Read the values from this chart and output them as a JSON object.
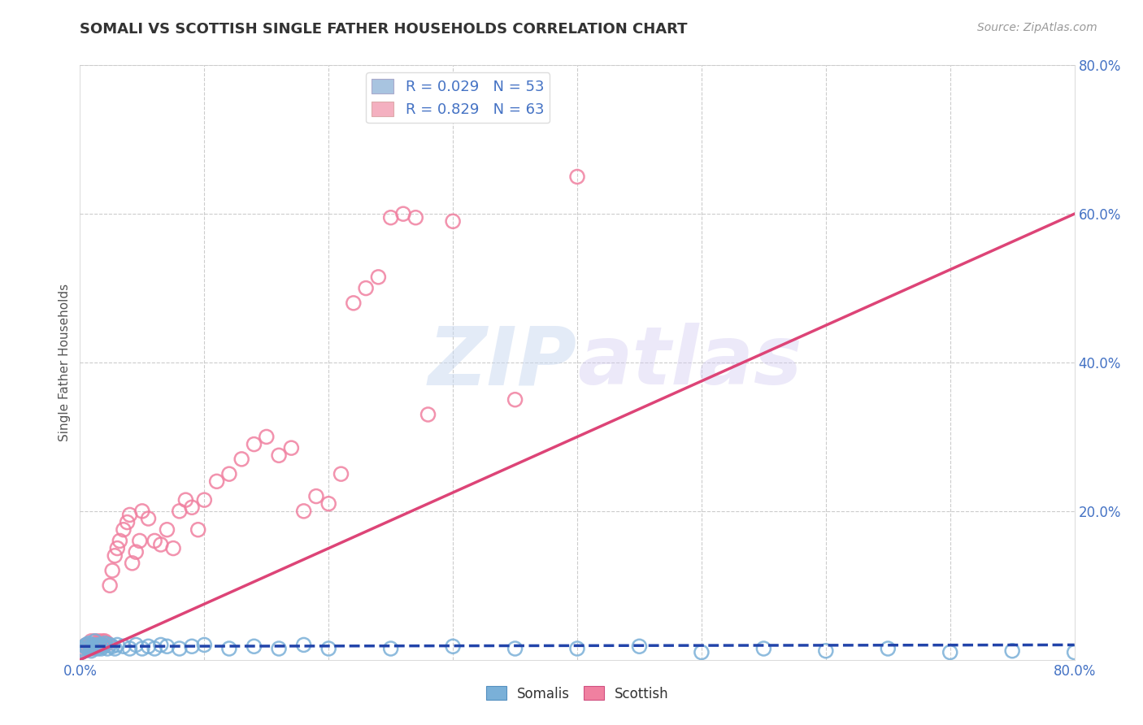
{
  "title": "SOMALI VS SCOTTISH SINGLE FATHER HOUSEHOLDS CORRELATION CHART",
  "source": "Source: ZipAtlas.com",
  "ylabel": "Single Father Households",
  "watermark_zip": "ZIP",
  "watermark_atlas": "atlas",
  "xlim": [
    0.0,
    0.8
  ],
  "ylim": [
    0.0,
    0.8
  ],
  "yticks_right": [
    0.0,
    0.2,
    0.4,
    0.6,
    0.8
  ],
  "somali_color": "#7ab0d8",
  "somali_edge_color": "#5590c0",
  "scottish_color": "#f080a0",
  "scottish_edge_color": "#d05080",
  "somali_line_color": "#2244aa",
  "scottish_line_color": "#dd4477",
  "background_color": "#ffffff",
  "grid_color": "#cccccc",
  "axis_label_color": "#4472c4",
  "title_color": "#333333",
  "legend_box_blue": "#a8c4e0",
  "legend_box_pink": "#f4b0c0",
  "somali_x": [
    0.001,
    0.002,
    0.003,
    0.004,
    0.005,
    0.006,
    0.007,
    0.008,
    0.009,
    0.01,
    0.011,
    0.012,
    0.013,
    0.014,
    0.015,
    0.016,
    0.017,
    0.018,
    0.019,
    0.02,
    0.022,
    0.024,
    0.026,
    0.028,
    0.03,
    0.035,
    0.04,
    0.045,
    0.05,
    0.055,
    0.06,
    0.065,
    0.07,
    0.08,
    0.09,
    0.1,
    0.12,
    0.14,
    0.16,
    0.18,
    0.2,
    0.25,
    0.3,
    0.35,
    0.4,
    0.45,
    0.5,
    0.55,
    0.6,
    0.65,
    0.7,
    0.75,
    0.8
  ],
  "somali_y": [
    0.01,
    0.015,
    0.012,
    0.018,
    0.02,
    0.015,
    0.022,
    0.018,
    0.012,
    0.015,
    0.02,
    0.025,
    0.018,
    0.015,
    0.02,
    0.018,
    0.015,
    0.02,
    0.018,
    0.022,
    0.015,
    0.02,
    0.018,
    0.015,
    0.02,
    0.018,
    0.015,
    0.02,
    0.015,
    0.018,
    0.015,
    0.02,
    0.018,
    0.015,
    0.018,
    0.02,
    0.015,
    0.018,
    0.015,
    0.02,
    0.015,
    0.015,
    0.018,
    0.015,
    0.015,
    0.018,
    0.01,
    0.015,
    0.012,
    0.015,
    0.01,
    0.012,
    0.01
  ],
  "scottish_x": [
    0.002,
    0.003,
    0.004,
    0.005,
    0.006,
    0.007,
    0.008,
    0.009,
    0.01,
    0.011,
    0.012,
    0.013,
    0.014,
    0.015,
    0.016,
    0.017,
    0.018,
    0.019,
    0.02,
    0.022,
    0.024,
    0.026,
    0.028,
    0.03,
    0.032,
    0.035,
    0.038,
    0.04,
    0.042,
    0.045,
    0.048,
    0.05,
    0.055,
    0.06,
    0.065,
    0.07,
    0.075,
    0.08,
    0.085,
    0.09,
    0.095,
    0.1,
    0.11,
    0.12,
    0.13,
    0.14,
    0.15,
    0.16,
    0.17,
    0.18,
    0.19,
    0.2,
    0.21,
    0.22,
    0.23,
    0.24,
    0.25,
    0.26,
    0.27,
    0.28,
    0.3,
    0.35,
    0.4
  ],
  "scottish_y": [
    0.012,
    0.015,
    0.018,
    0.02,
    0.015,
    0.018,
    0.02,
    0.025,
    0.018,
    0.02,
    0.025,
    0.018,
    0.022,
    0.025,
    0.02,
    0.022,
    0.025,
    0.02,
    0.025,
    0.022,
    0.1,
    0.12,
    0.14,
    0.15,
    0.16,
    0.175,
    0.185,
    0.195,
    0.13,
    0.145,
    0.16,
    0.2,
    0.19,
    0.16,
    0.155,
    0.175,
    0.15,
    0.2,
    0.215,
    0.205,
    0.175,
    0.215,
    0.24,
    0.25,
    0.27,
    0.29,
    0.3,
    0.275,
    0.285,
    0.2,
    0.22,
    0.21,
    0.25,
    0.48,
    0.5,
    0.515,
    0.595,
    0.6,
    0.595,
    0.33,
    0.59,
    0.35,
    0.65
  ],
  "scottish_line_start_x": 0.0,
  "scottish_line_start_y": 0.0,
  "scottish_line_end_x": 0.8,
  "scottish_line_end_y": 0.6,
  "somali_line_start_x": 0.0,
  "somali_line_start_y": 0.018,
  "somali_line_end_x": 0.8,
  "somali_line_end_y": 0.02
}
